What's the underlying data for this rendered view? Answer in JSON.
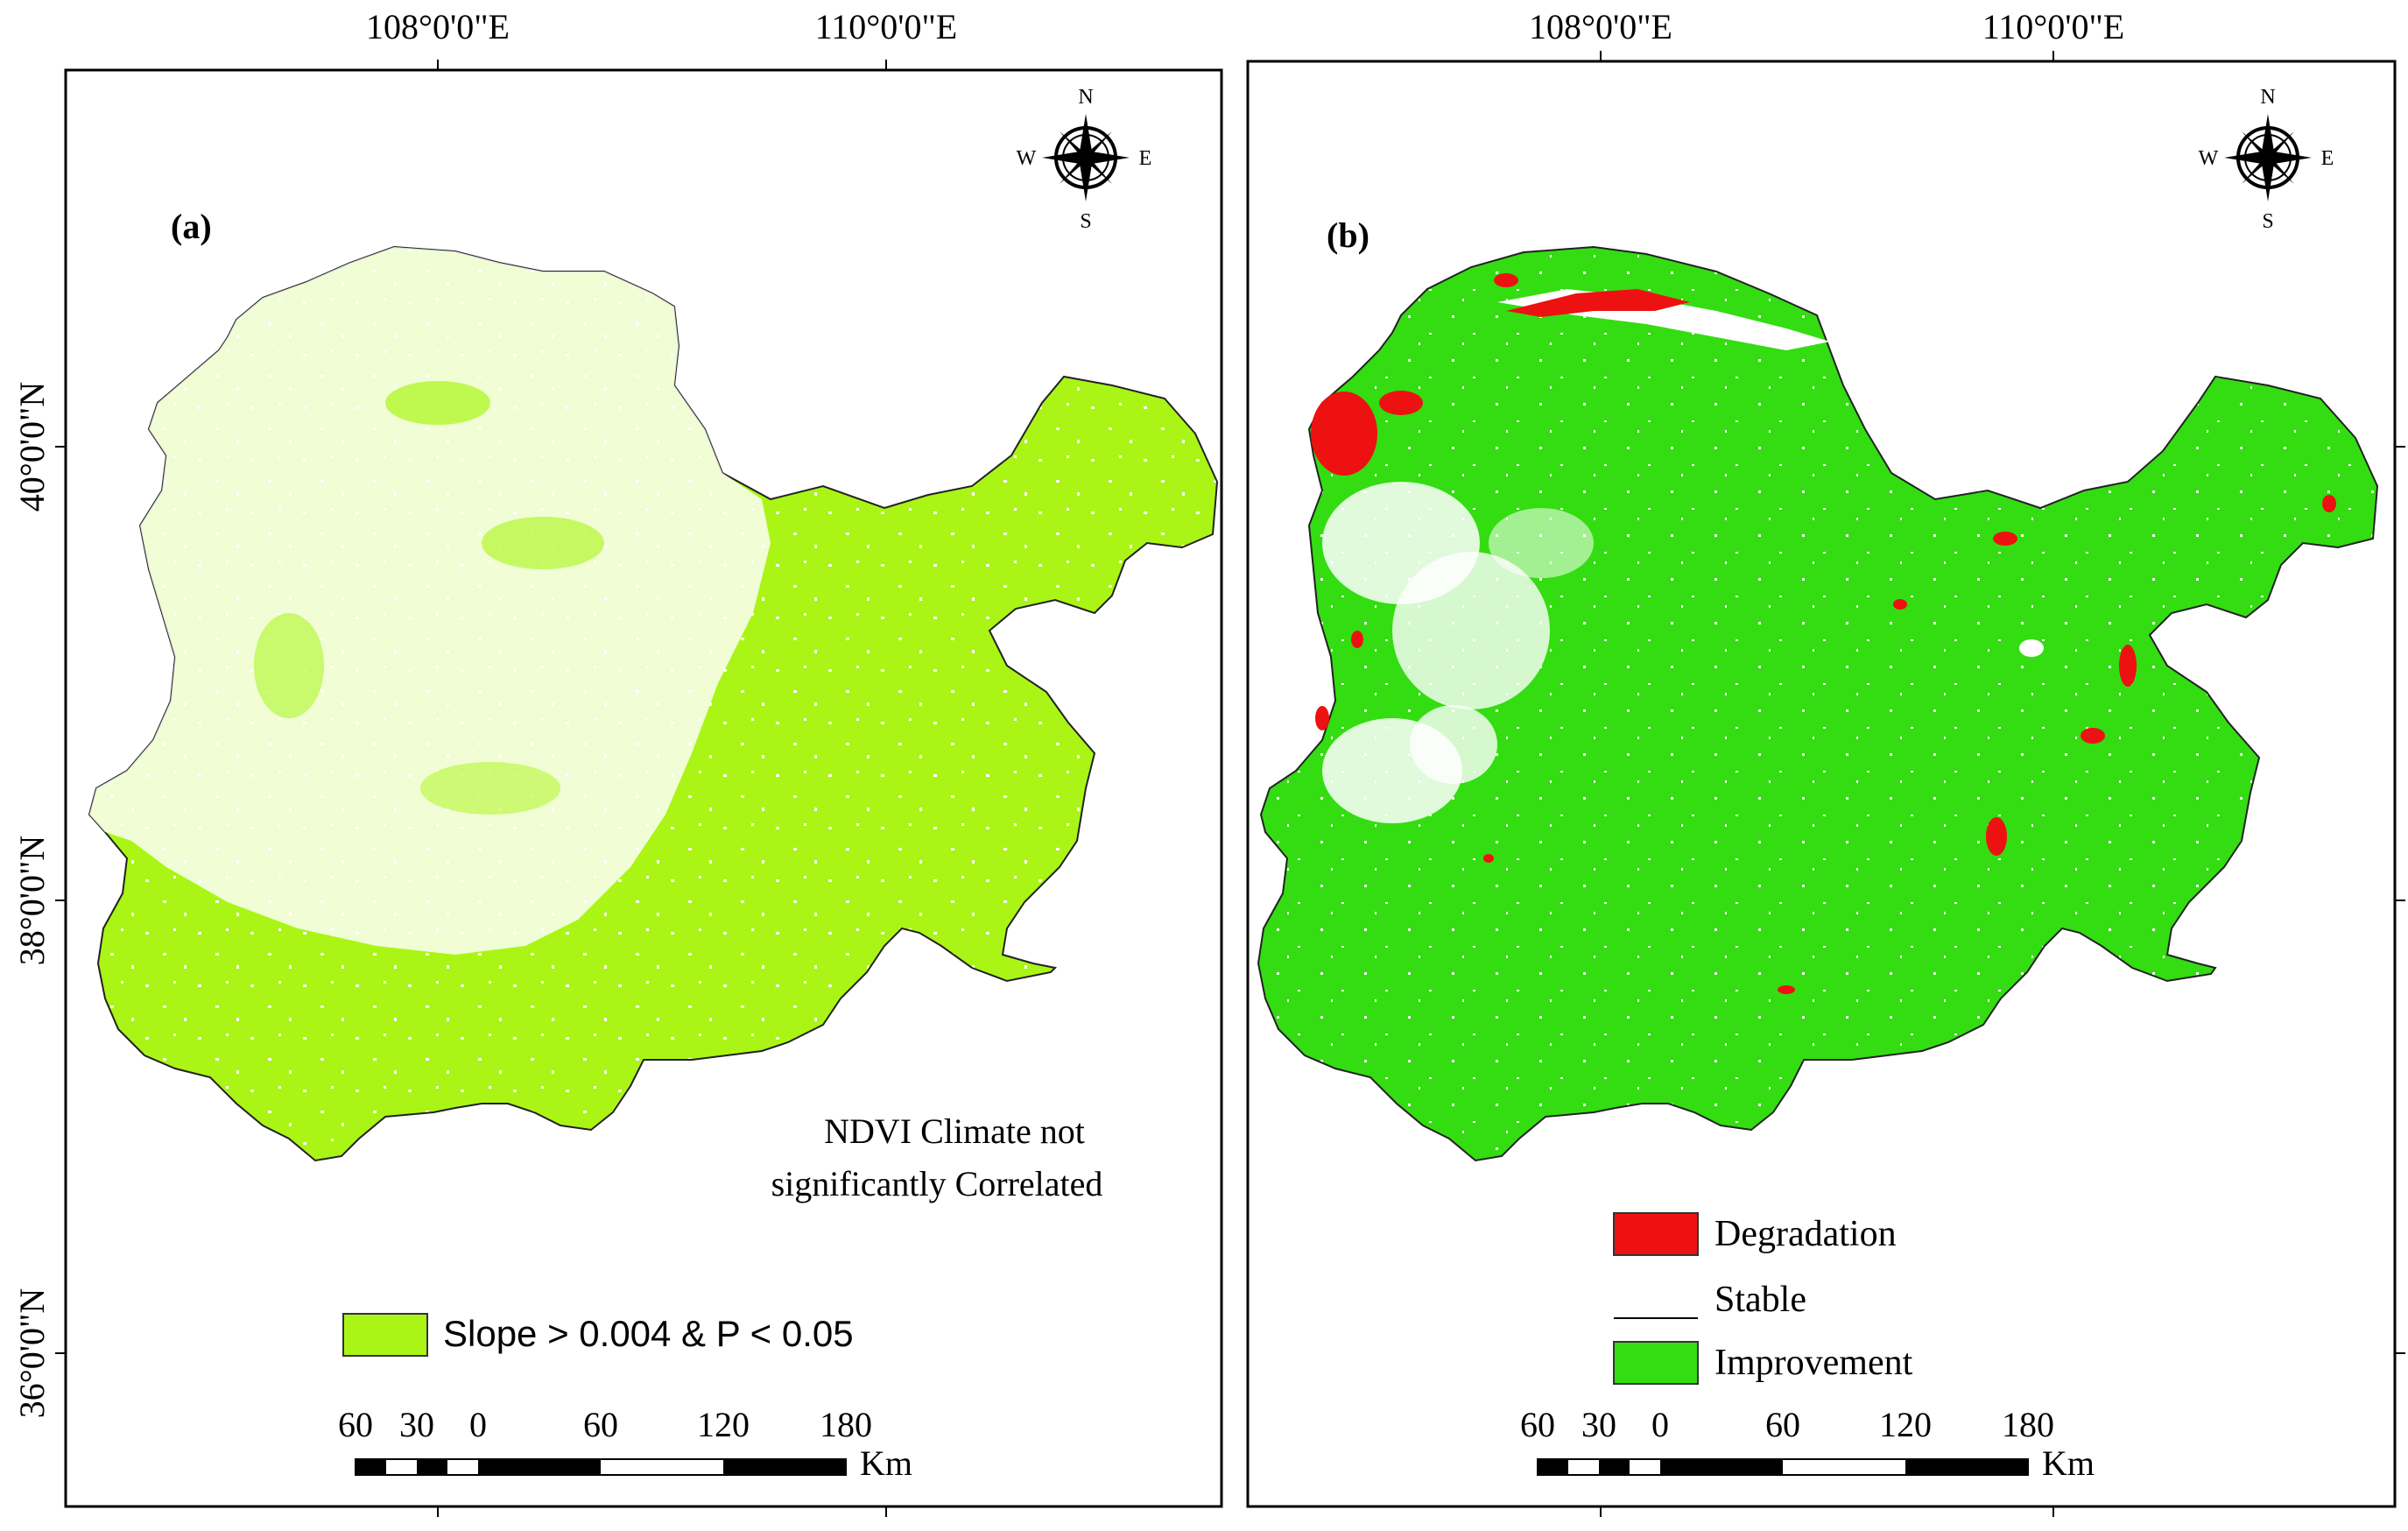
{
  "figure": {
    "longitude_labels": [
      "108°0'0\"E",
      "110°0'0\"E"
    ],
    "latitude_labels": [
      "40°0'0\"N",
      "38°0'0\"N",
      "36°0'0\"N"
    ],
    "compass": {
      "n": "N",
      "s": "S",
      "e": "E",
      "w": "W"
    },
    "scale_bar": {
      "ticks": [
        "60",
        "30",
        "0",
        "60",
        "120",
        "180"
      ],
      "unit": "Km"
    }
  },
  "panel_a": {
    "letter": "(a)",
    "annotation_line1": "NDVI Climate not",
    "annotation_line2": "significantly Correlated",
    "legend": [
      {
        "label": "Slope > 0.004 & P < 0.05",
        "color": "#aaf516"
      }
    ]
  },
  "panel_b": {
    "letter": "(b)",
    "legend": [
      {
        "label": "Degradation",
        "color": "#ee1111"
      },
      {
        "label": "Stable",
        "color": "#ffffff"
      },
      {
        "label": "Improvement",
        "color": "#33dd11"
      }
    ]
  },
  "colors": {
    "slope_green": "#aaf516",
    "improvement_green": "#33dd11",
    "degradation_red": "#ee1111",
    "frame": "#000000"
  }
}
